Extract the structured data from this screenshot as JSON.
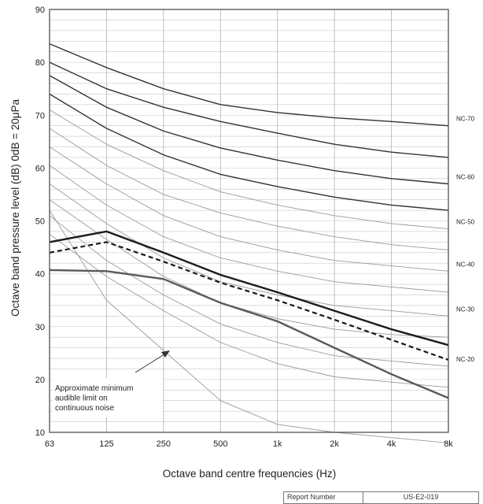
{
  "chart_data": {
    "type": "line",
    "xlabel": "Octave band centre frequencies (Hz)",
    "ylabel": "Octave band pressure level (dB) 0dB = 20μPa",
    "x_ticks": [
      "63",
      "125",
      "250",
      "500",
      "1k",
      "2k",
      "4k",
      "8k"
    ],
    "y_ticks": [
      10,
      20,
      30,
      40,
      50,
      60,
      70,
      80,
      90
    ],
    "ylim": [
      10,
      90
    ],
    "grid": true,
    "nc_curves": [
      {
        "name": "NC-70",
        "values": [
          83.5,
          79,
          75,
          72,
          70.5,
          69.5,
          68.8,
          68
        ]
      },
      {
        "name": "",
        "values": [
          80,
          75,
          71.5,
          68.8,
          66.6,
          64.5,
          63,
          62
        ]
      },
      {
        "name": "NC-60",
        "values": [
          77.5,
          71.5,
          67,
          63.8,
          61.5,
          59.5,
          58,
          57
        ]
      },
      {
        "name": "",
        "values": [
          74,
          67.5,
          62.5,
          58.8,
          56.5,
          54.5,
          53,
          52
        ]
      },
      {
        "name": "NC-50",
        "values": [
          71,
          64.5,
          59.5,
          55.5,
          53,
          51,
          49.5,
          48.5
        ]
      },
      {
        "name": "",
        "values": [
          67.5,
          60.5,
          55,
          51.5,
          49,
          47,
          45.5,
          44.5
        ]
      },
      {
        "name": "NC-40",
        "values": [
          64,
          57,
          51,
          47,
          44.5,
          42.5,
          41.5,
          40.5
        ]
      },
      {
        "name": "",
        "values": [
          60.5,
          53,
          47,
          43,
          40.5,
          38.5,
          37.5,
          36.5
        ]
      },
      {
        "name": "NC-30",
        "values": [
          57,
          49.5,
          43,
          38.5,
          36,
          34,
          33,
          32
        ]
      },
      {
        "name": "",
        "values": [
          54,
          46.5,
          39.5,
          34.5,
          31.5,
          29.5,
          28.5,
          28
        ]
      },
      {
        "name": "NC-20",
        "values": [
          51,
          42.5,
          36,
          30.5,
          27,
          24.5,
          23.5,
          22.5
        ]
      },
      {
        "name": "",
        "values": [
          47.5,
          39.5,
          33,
          27,
          23,
          20.5,
          19.5,
          18.5
        ]
      }
    ],
    "hearing_threshold": [
      52,
      35,
      25.5,
      16,
      11.5,
      10,
      9,
      8
    ],
    "measured_series": [
      {
        "style": "thick-solid",
        "values": [
          46,
          48,
          44,
          39.8,
          36.5,
          33,
          29.5,
          26.5
        ]
      },
      {
        "style": "thick-dashed",
        "values": [
          44,
          46,
          42.3,
          38.3,
          35,
          31.3,
          27.5,
          23.7
        ]
      },
      {
        "style": "thick-grey",
        "values": [
          40.7,
          40.5,
          39,
          34.5,
          31,
          26,
          21,
          16.5
        ]
      }
    ],
    "annotation": {
      "lines": [
        "Approximate minimum",
        "audible limit on",
        "continuous noise"
      ]
    }
  },
  "report": {
    "label": "Report Number",
    "value": "US-E2-019"
  }
}
